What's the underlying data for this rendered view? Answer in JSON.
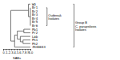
{
  "chart_data": {
    "type": "dendrogram",
    "x_label": "SABs",
    "color": "#555555",
    "xlim": [
      0,
      1
    ],
    "xticks": [
      0,
      {
        "value": 0.1,
        "label": ".1"
      },
      {
        "value": 0.2,
        "label": ".2"
      },
      {
        "value": 0.3,
        "label": ".3"
      },
      {
        "value": 0.4,
        "label": ".4"
      },
      {
        "value": 0.5,
        "label": ".5"
      },
      {
        "value": 0.6,
        "label": ".6"
      },
      {
        "value": 0.7,
        "label": ".7"
      },
      {
        "value": 0.8,
        "label": ".8"
      },
      {
        "value": 0.9,
        "label": ".9"
      },
      {
        "value": 1.0,
        "label": "1.0"
      }
    ],
    "tree": {
      "value": 0.28,
      "children": [
        {
          "value": 0.93,
          "children": [
            {
              "name": "WO"
            },
            {
              "value": 1.0,
              "children": [
                {
                  "name": "Br1"
                },
                {
                  "name": "Br2"
                },
                {
                  "name": "Br3"
                },
                {
                  "name": "Br4"
                },
                {
                  "name": "Br5"
                },
                {
                  "name": "Br6"
                }
              ]
            }
          ]
        },
        {
          "value": 0.42,
          "children": [
            {
              "value": 0.52,
              "children": [
                {
                  "value": 0.76,
                  "children": [
                    {
                      "name": "Pb1"
                    },
                    {
                      "name": "Pr2"
                    }
                  ]
                },
                {
                  "value": 0.63,
                  "children": [
                    {
                      "name": "Lab"
                    },
                    {
                      "value": 0.73,
                      "children": [
                        {
                          "name": "Ph1"
                        },
                        {
                          "name": "Ph2"
                        }
                      ]
                    }
                  ]
                }
              ]
            },
            {
              "name": "J940043"
            }
          ]
        }
      ]
    },
    "annotations": [
      {
        "text": "Outbreak\nIsolates",
        "from": "Br1",
        "to": "Br6"
      },
      {
        "text": "Group B\nC. parapsilosis\nIsolates",
        "from": "WO",
        "to": "J940043"
      }
    ]
  }
}
